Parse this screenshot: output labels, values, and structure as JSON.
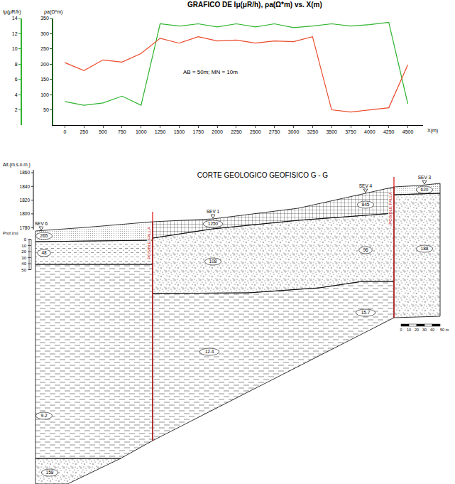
{
  "chart_data": {
    "type": "line",
    "title": "GRAFICO DE Iμ(μR/h), ρa(Ω*m) vs. X(m)",
    "x_label": "X(m)",
    "y_label": "Iμ(μR/h)",
    "y2_label": "ρa(Ω*m)",
    "annotations": [
      "AB = 50m; MN = 10m"
    ],
    "x": [
      0,
      250,
      500,
      750,
      1000,
      1250,
      1500,
      1750,
      2000,
      2250,
      2500,
      2750,
      3000,
      3250,
      3500,
      3750,
      4000,
      4250,
      4500
    ],
    "series": [
      {
        "color": "#2fb32f",
        "values": [
          3.1,
          2.6,
          2.9,
          3.8,
          2.6,
          13.3,
          13.0,
          13.3,
          12.9,
          13.3,
          12.9,
          13.3,
          12.8,
          13.0,
          13.3,
          13.0,
          13.2,
          13.5,
          2.8
        ]
      },
      {
        "color": "#ea4a2a",
        "axis": "y2",
        "values": [
          205,
          179,
          214,
          207,
          235,
          285,
          269,
          290,
          276,
          279,
          269,
          276,
          274,
          290,
          50,
          43,
          50,
          57,
          198
        ]
      }
    ],
    "xlim": [
      -150,
      4700
    ],
    "xticks": [
      0,
      250,
      500,
      750,
      1000,
      1250,
      1500,
      1750,
      2000,
      2250,
      2500,
      2750,
      3000,
      3250,
      3500,
      3750,
      4000,
      4250,
      4500
    ],
    "ylim": [
      0,
      14
    ],
    "yticks": [
      2,
      4,
      6,
      8,
      10,
      12,
      14
    ],
    "y2lim": [
      0,
      350
    ],
    "y2ticks": [
      50,
      100,
      150,
      200,
      250,
      300,
      350
    ],
    "grid": false,
    "line_style": "solid"
  },
  "section": {
    "title": "CORTE GEOLOGICO GEOFISICO G - G",
    "elevation_axis": {
      "label": "Alt.(m.s.n.m.)",
      "ticks": [
        1860,
        1840,
        1820,
        1800,
        1780
      ]
    },
    "depth_axis": {
      "label": "Prof.(m)",
      "ticks": [
        0,
        10,
        20,
        30,
        40,
        50
      ]
    },
    "soundings": [
      {
        "name": "SEV 6",
        "values": [
          265,
          48,
          9.2,
          158
        ]
      },
      {
        "name": "SEV 1",
        "values": [
          1250,
          108,
          12.4
        ]
      },
      {
        "name": "SEV 4",
        "values": [
          845,
          96,
          15.7
        ]
      },
      {
        "name": "SEV 3",
        "values": [
          620,
          188
        ]
      }
    ],
    "faults": [
      "POSIBLE FALLA",
      "POSIBLE FALLA"
    ],
    "scale_bar": [
      "0",
      "10",
      "20",
      "30",
      "40",
      "50 m"
    ]
  }
}
